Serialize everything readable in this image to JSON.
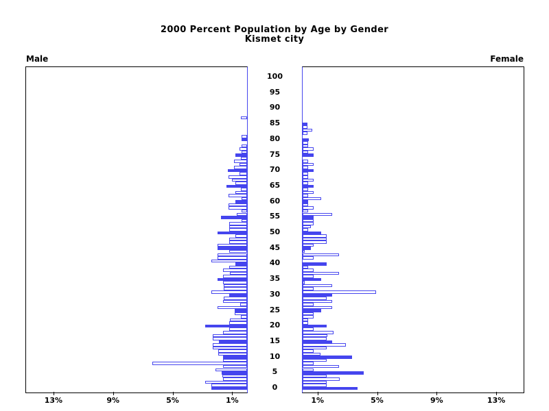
{
  "title": {
    "line1": "2000 Percent Population by Age by Gender",
    "line2": "Kismet city"
  },
  "panel_labels": {
    "left": "Male",
    "right": "Female"
  },
  "colors": {
    "bar_blue": "#4545ee",
    "axis_black": "#000000",
    "background": "#ffffff",
    "text": "#000000"
  },
  "chart_data": {
    "type": "bar",
    "variant": "population-pyramid",
    "title": "2000 Percent Population by Age by Gender",
    "subtitle": "Kismet city",
    "unit": "percent of total population",
    "legend": "none",
    "grid": false,
    "bar_style": {
      "solid_fill_every_age_multiple": 5,
      "fill_color": "#4545ee",
      "outline_color": "#4545ee",
      "hollow_fill": "#ffffff"
    },
    "age_axis": {
      "min": 0,
      "max": 100,
      "tick_step": 5,
      "tick_labels": [
        "0",
        "5",
        "10",
        "15",
        "20",
        "25",
        "30",
        "35",
        "40",
        "45",
        "50",
        "55",
        "60",
        "65",
        "70",
        "75",
        "80",
        "85",
        "90",
        "95",
        "100"
      ]
    },
    "pct_axis": {
      "max_pct": 14.9,
      "tick_values": [
        1,
        5,
        9,
        13
      ],
      "tick_labels_male_side": [
        "13%",
        "9%",
        "5%",
        "1%"
      ],
      "tick_labels_female_side": [
        "1%",
        "5%",
        "9%",
        "13%"
      ]
    },
    "series": [
      {
        "name": "Male",
        "side": "left",
        "values_pct_by_single_year_age": [
          2.4,
          2.4,
          2.8,
          1.6,
          1.65,
          1.7,
          2.1,
          1.6,
          6.35,
          1.6,
          1.6,
          1.95,
          1.95,
          2.3,
          2.3,
          1.9,
          2.3,
          2.3,
          1.6,
          1.2,
          2.8,
          1.2,
          1.15,
          0.4,
          0.85,
          0.85,
          2.0,
          0.45,
          1.6,
          1.55,
          1.2,
          2.4,
          1.55,
          1.55,
          1.6,
          2.0,
          1.6,
          1.15,
          1.6,
          1.2,
          0.8,
          2.4,
          2.0,
          2.0,
          1.2,
          2.0,
          2.0,
          1.2,
          1.2,
          0.8,
          2.0,
          1.2,
          1.2,
          1.2,
          0.35,
          1.75,
          0.7,
          0.35,
          1.25,
          1.25,
          0.8,
          0.35,
          1.25,
          0.8,
          0.4,
          1.4,
          0.8,
          1.0,
          1.25,
          0.5,
          1.3,
          0.9,
          0.5,
          0.9,
          0.4,
          0.8,
          0.35,
          0.5,
          0.35,
          0,
          0.35,
          0.35,
          0,
          0,
          0,
          0,
          0,
          0.4,
          0,
          0,
          0,
          0,
          0,
          0,
          0,
          0,
          0,
          0,
          0,
          0,
          0
        ]
      },
      {
        "name": "Female",
        "side": "right",
        "values_pct_by_single_year_age": [
          3.7,
          1.6,
          1.6,
          2.5,
          1.6,
          4.1,
          0.75,
          2.45,
          0.75,
          1.6,
          3.3,
          1.2,
          0.75,
          1.6,
          2.9,
          2.0,
          1.6,
          1.65,
          2.05,
          0.75,
          1.6,
          0.35,
          0.35,
          0.75,
          0.75,
          1.25,
          2.0,
          0.75,
          2.0,
          1.6,
          2.0,
          4.95,
          0.75,
          2.0,
          0.15,
          1.25,
          0.75,
          2.45,
          0.75,
          0.35,
          1.6,
          0,
          0.75,
          2.45,
          0.15,
          0.55,
          0.75,
          1.6,
          1.6,
          1.6,
          1.25,
          0.35,
          0.55,
          0.75,
          0.75,
          0.75,
          2.0,
          0.35,
          0.75,
          0.35,
          0.35,
          1.25,
          0.35,
          0.75,
          0.35,
          0.75,
          0.35,
          0.75,
          0.35,
          0.35,
          0.75,
          0.35,
          0.75,
          0.35,
          0,
          0.75,
          0.35,
          0.75,
          0.35,
          0.35,
          0.4,
          0,
          0.32,
          0.65,
          0.32,
          0.32,
          0,
          0,
          0,
          0,
          0,
          0,
          0,
          0,
          0,
          0,
          0,
          0,
          0,
          0,
          0
        ]
      }
    ]
  }
}
